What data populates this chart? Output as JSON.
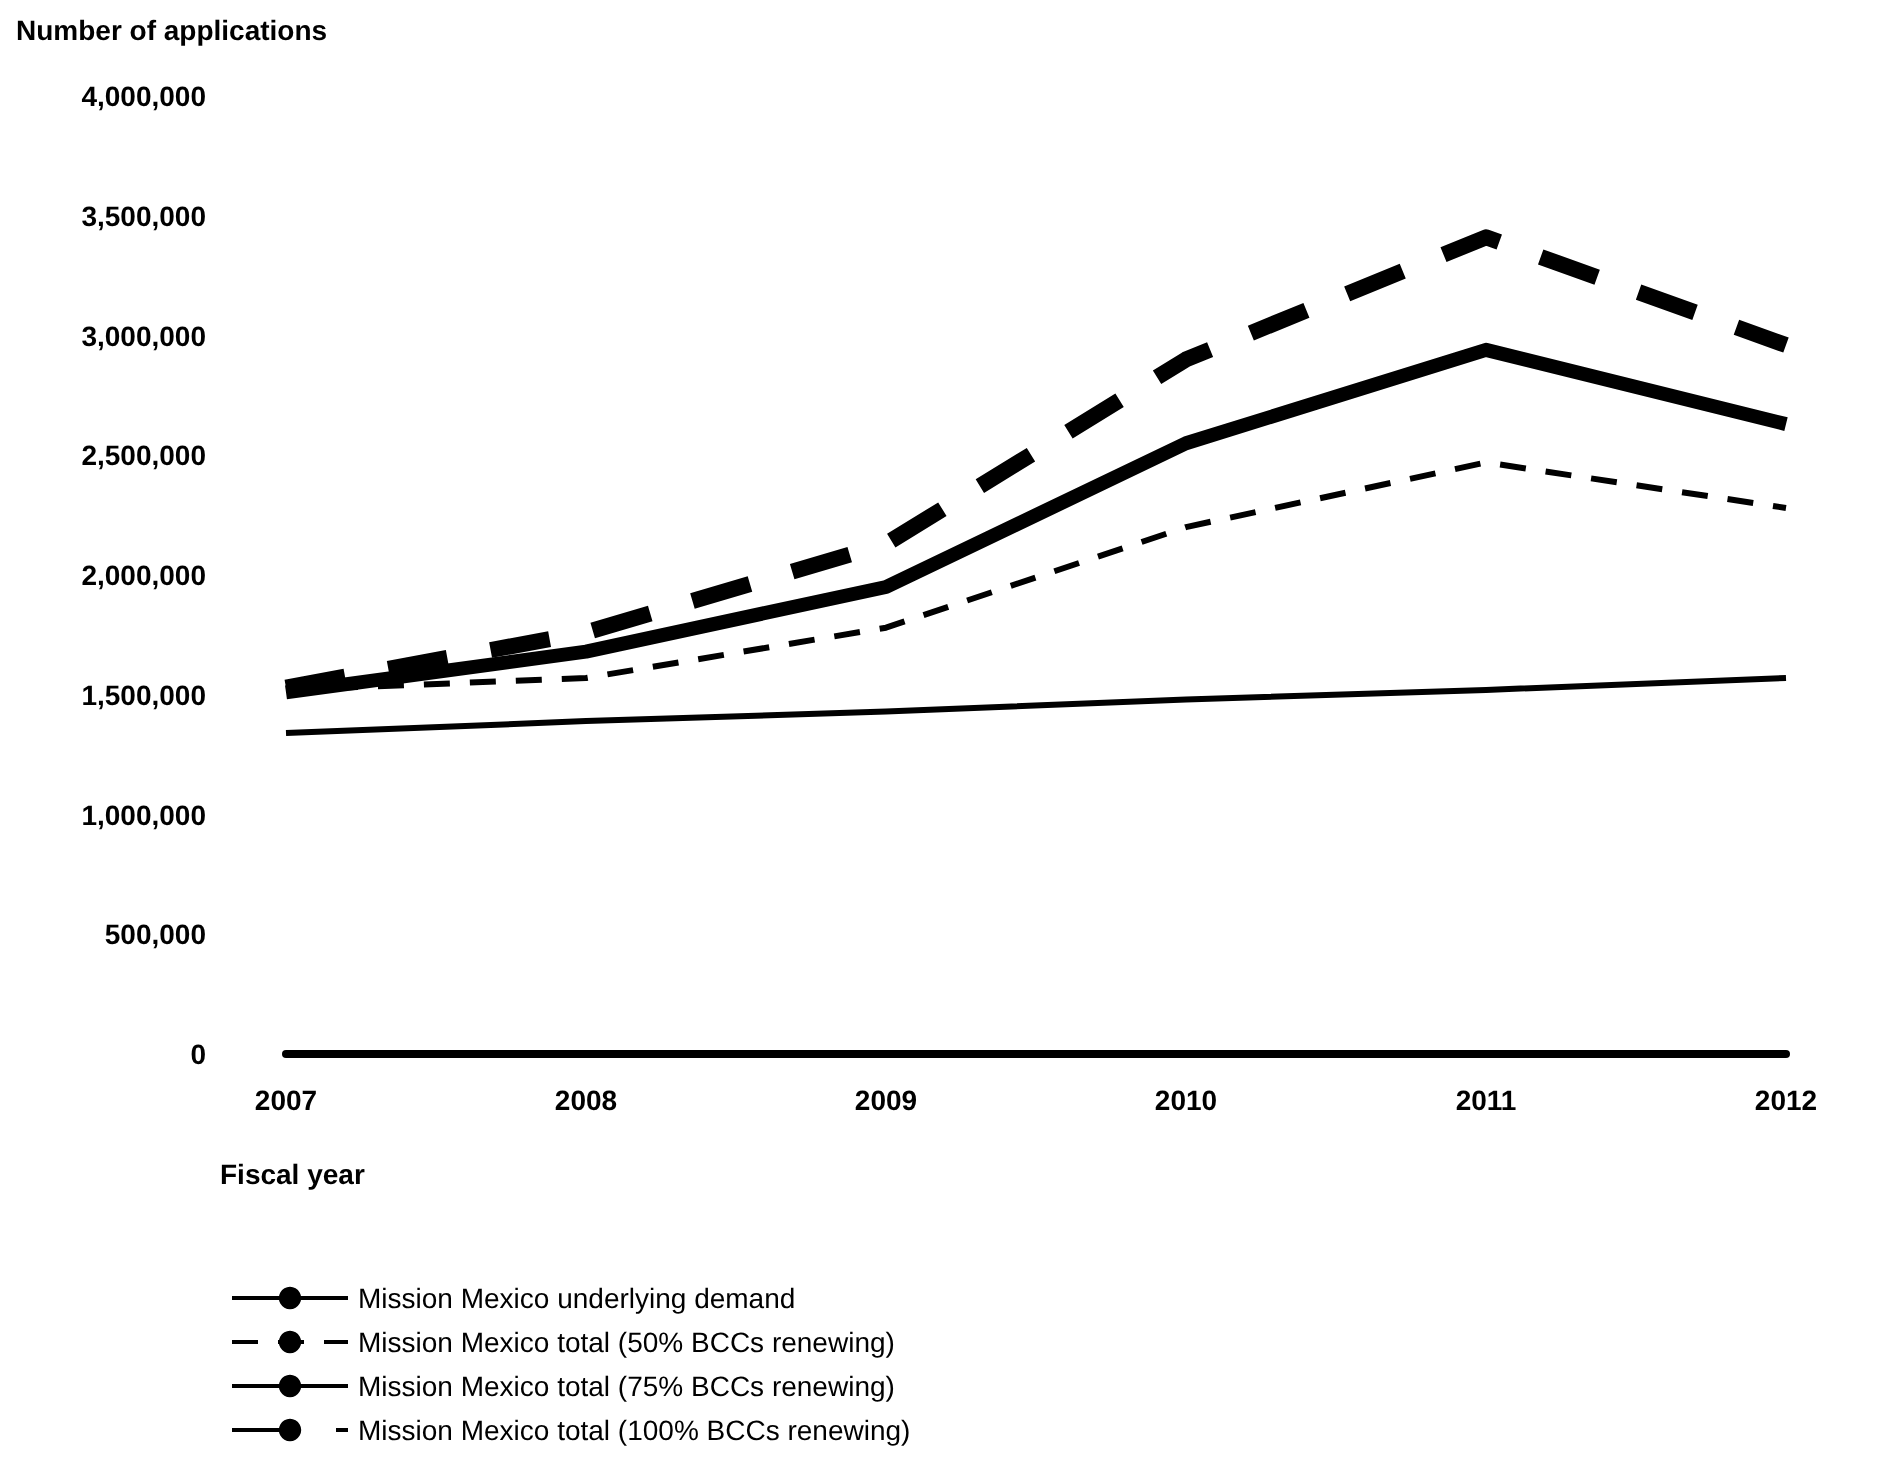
{
  "chart_data": {
    "type": "line",
    "ylabel": "Number of applications",
    "xlabel": "Fiscal year",
    "categories": [
      "2007",
      "2008",
      "2009",
      "2010",
      "2011",
      "2012"
    ],
    "series": [
      {
        "name": "Mission Mexico underlying demand",
        "color": "#000000",
        "line_style": "solid",
        "values": [
          1340000,
          1390000,
          1430000,
          1480000,
          1520000,
          1570000
        ]
      },
      {
        "name": "Mission Mexico total (50% BCCs renewing)",
        "color": "#000000",
        "line_style": "dashed",
        "values": [
          1520000,
          1570000,
          1780000,
          2200000,
          2470000,
          2280000
        ]
      },
      {
        "name": "Mission Mexico total (75% BCCs renewing)",
        "color": "#000000",
        "line_style": "solid",
        "values": [
          1510000,
          1680000,
          1950000,
          2550000,
          2940000,
          2630000
        ]
      },
      {
        "name": "Mission Mexico total (100% BCCs renewing)",
        "color": "#000000",
        "line_style": "dashed",
        "values": [
          1530000,
          1760000,
          2130000,
          2900000,
          3410000,
          2960000
        ]
      }
    ],
    "ylim": [
      0,
      4000000
    ],
    "yticks": [
      0,
      {
        "value": 500000,
        "label": "500,000"
      },
      {
        "value": 1000000,
        "label": "1,000,000"
      },
      {
        "value": 1500000,
        "label": "1,500,000"
      },
      {
        "value": 2000000,
        "label": "2,000,000"
      },
      {
        "value": 2500000,
        "label": "2,500,000"
      },
      {
        "value": 3000000,
        "label": "3,000,000"
      },
      {
        "value": 3500000,
        "label": "3,500,000"
      },
      {
        "value": 4000000,
        "label": "4,000,000"
      }
    ],
    "grid": false,
    "legend": "bottom",
    "marker": "none"
  }
}
